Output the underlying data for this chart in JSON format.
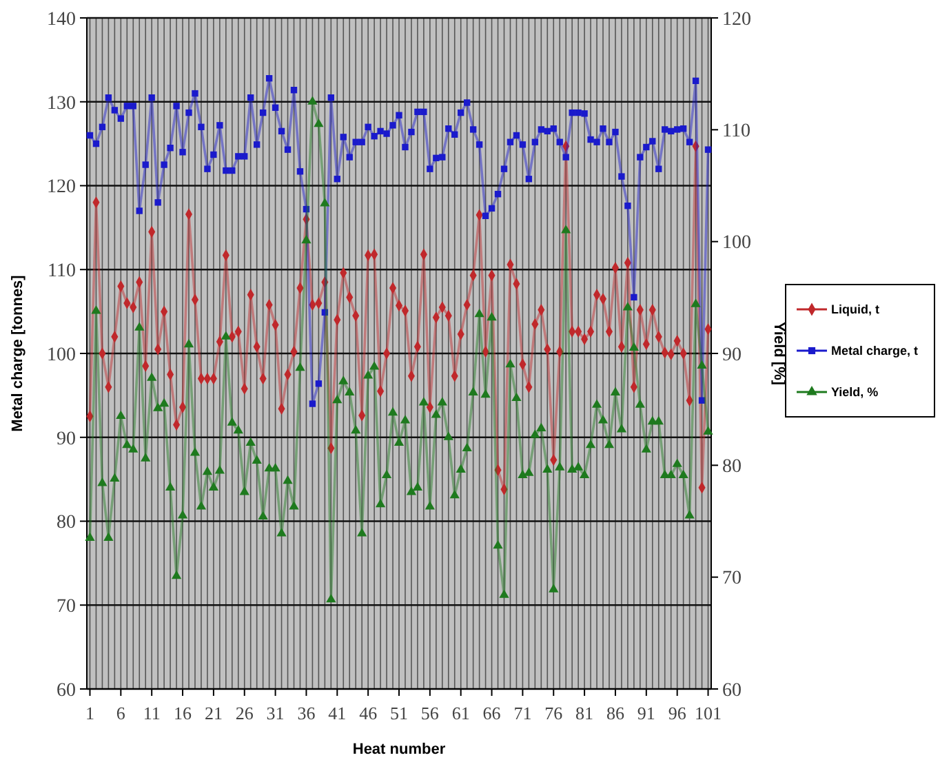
{
  "chart_data": {
    "type": "line",
    "xlabel": "Heat number",
    "ylabel": "Metal charge [tonnes]",
    "y2label": "Yield [%]",
    "x": [
      1,
      2,
      3,
      4,
      5,
      6,
      7,
      8,
      9,
      10,
      11,
      12,
      13,
      14,
      15,
      16,
      17,
      18,
      19,
      20,
      21,
      22,
      23,
      24,
      25,
      26,
      27,
      28,
      29,
      30,
      31,
      32,
      33,
      34,
      35,
      36,
      37,
      38,
      39,
      40,
      41,
      42,
      43,
      44,
      45,
      46,
      47,
      48,
      49,
      50,
      51,
      52,
      53,
      54,
      55,
      56,
      57,
      58,
      59,
      60,
      61,
      62,
      63,
      64,
      65,
      66,
      67,
      68,
      69,
      70,
      71,
      72,
      73,
      74,
      75,
      76,
      77,
      78,
      79,
      80,
      81,
      82,
      83,
      84,
      85,
      86,
      87,
      88,
      89,
      90,
      91,
      92,
      93,
      94,
      95,
      96,
      97,
      98,
      99,
      100,
      101
    ],
    "xlim": [
      0.5,
      101.5
    ],
    "xticks": [
      1,
      6,
      11,
      16,
      21,
      26,
      31,
      36,
      41,
      46,
      51,
      56,
      61,
      66,
      71,
      76,
      81,
      86,
      91,
      96,
      101
    ],
    "ylim": [
      60,
      140
    ],
    "yticks": [
      60,
      70,
      80,
      90,
      100,
      110,
      120,
      130,
      140
    ],
    "y2lim": [
      60,
      120
    ],
    "y2ticks": [
      60,
      70,
      80,
      90,
      100,
      110,
      120
    ],
    "grid": true,
    "legend": "right",
    "series": [
      {
        "name": "Liquid, t",
        "color": "#c0282b",
        "marker": "diamond",
        "values": [
          92.5,
          118,
          100,
          96,
          102,
          108,
          106,
          105.5,
          108.5,
          98.5,
          114.5,
          100.5,
          105,
          97.5,
          91.5,
          93.6,
          116.6,
          106.4,
          97,
          97,
          97,
          101.4,
          111.7,
          102,
          102.6,
          95.8,
          107,
          100.8,
          97,
          105.8,
          103.4,
          93.4,
          97.5,
          100.2,
          107.8,
          116,
          105.8,
          106,
          108.5,
          88.7,
          104,
          109.6,
          106.7,
          104.5,
          92.6,
          111.7,
          111.8,
          95.5,
          100,
          107.8,
          105.7,
          105.1,
          97.3,
          100.8,
          111.8,
          93.6,
          104.3,
          105.5,
          104.5,
          97.3,
          102.3,
          105.8,
          109.3,
          116.5,
          100.2,
          109.3,
          86.1,
          83.8,
          110.6,
          108.3,
          98.7,
          96,
          103.5,
          105.2,
          100.5,
          87.3,
          100.2,
          124.7,
          102.6,
          102.6,
          101.7,
          102.6,
          107,
          106.5,
          102.6,
          110.2,
          100.8,
          110.8,
          96,
          105.2,
          101.1,
          105.2,
          102,
          100.1,
          99.9,
          101.5,
          100,
          94.4,
          124.7,
          84,
          102.9
        ]
      },
      {
        "name": "Metal charge, t",
        "color": "#1a1acc",
        "marker": "square",
        "values": [
          126,
          125,
          127,
          130.5,
          129,
          128,
          129.5,
          129.5,
          117,
          122.5,
          130.5,
          118,
          122.5,
          124.5,
          129.5,
          124,
          128.7,
          131,
          127,
          122,
          123.7,
          127.2,
          121.8,
          121.8,
          123.5,
          123.5,
          130.5,
          124.9,
          128.7,
          132.8,
          129.3,
          126.5,
          124.3,
          131.4,
          121.7,
          117.2,
          94,
          96.4,
          104.9,
          130.5,
          120.8,
          125.8,
          123.4,
          125.2,
          125.2,
          127,
          125.9,
          126.5,
          126.2,
          127.2,
          128.4,
          124.6,
          126.4,
          128.8,
          128.8,
          122,
          123.3,
          123.4,
          126.8,
          126.1,
          128.7,
          129.9,
          126.7,
          124.9,
          116.4,
          117.3,
          119,
          122,
          125.2,
          126,
          124.9,
          120.8,
          125.2,
          126.7,
          126.5,
          126.8,
          125.2,
          123.4,
          128.7,
          128.7,
          128.6,
          125.5,
          125.2,
          126.8,
          125.2,
          126.4,
          121.1,
          117.6,
          106.7,
          123.4,
          124.6,
          125.3,
          122,
          126.7,
          126.5,
          126.7,
          126.8,
          125.2,
          132.5,
          94.4,
          124.3
        ]
      },
      {
        "name": "Yield, %",
        "color": "#1e7a1e",
        "marker": "triangle",
        "axis": "y2",
        "values": [
          73.5,
          93.8,
          78.4,
          73.5,
          78.8,
          84.4,
          81.8,
          81.4,
          92.3,
          80.6,
          87.8,
          85.1,
          85.5,
          78,
          70.1,
          75.5,
          90.8,
          81.1,
          76.3,
          79.4,
          78,
          79.5,
          91.5,
          83.8,
          83.1,
          77.6,
          82,
          80.4,
          75.4,
          79.7,
          79.7,
          73.9,
          78.6,
          76.3,
          88.7,
          100.1,
          112.5,
          110.5,
          103.4,
          68,
          85.8,
          87.5,
          86.5,
          83.1,
          73.9,
          88,
          88.8,
          76.5,
          79.1,
          84.7,
          82,
          84,
          77.6,
          78,
          85.6,
          76.3,
          84.5,
          85.6,
          82.5,
          77.3,
          79.6,
          81.5,
          86.5,
          93.5,
          86.3,
          93.2,
          72.8,
          68.4,
          89,
          86,
          79.1,
          79.3,
          82.7,
          83.3,
          79.6,
          68.9,
          79.8,
          101,
          79.6,
          79.8,
          79.1,
          81.8,
          85.4,
          84,
          81.8,
          86.5,
          83.2,
          94.1,
          90.5,
          85.4,
          81.4,
          83.9,
          83.9,
          79.1,
          79.1,
          80.1,
          79.1,
          75.5,
          94.4,
          88.9,
          83
        ]
      }
    ]
  }
}
